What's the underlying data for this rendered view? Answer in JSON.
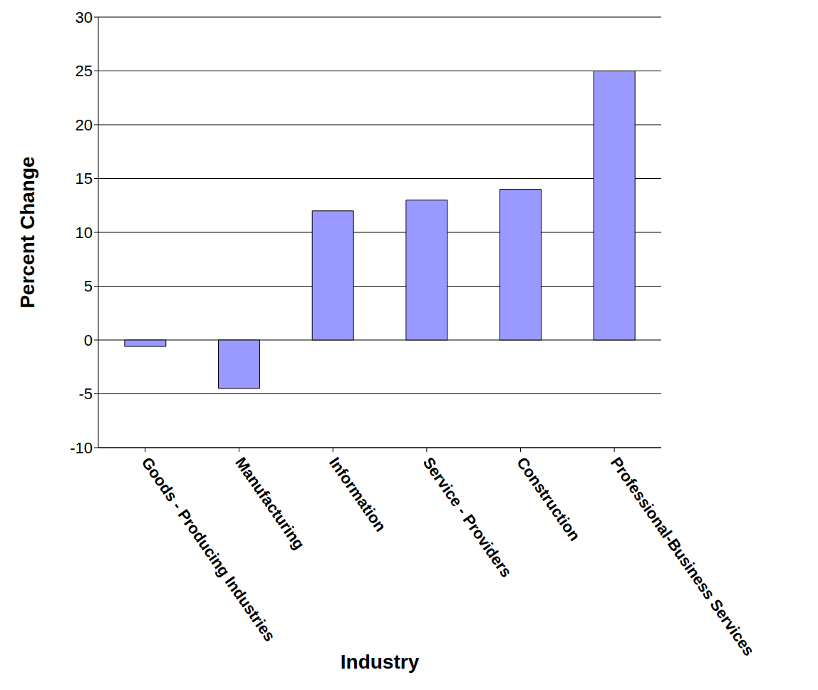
{
  "chart_data": {
    "type": "bar",
    "x_label": "Industry",
    "y_label": "Percent Change",
    "categories": [
      "Goods - Producing Industries",
      "Manufacturing",
      "Information",
      "Service - Providers",
      "Construction",
      "Professional-Business Services"
    ],
    "values": [
      -0.6,
      -4.5,
      12,
      13,
      14,
      25
    ],
    "color": "#9999ff",
    "ylim": [
      -10,
      30
    ],
    "yticks": [
      -10,
      -5,
      0,
      5,
      10,
      15,
      20,
      25,
      30
    ],
    "grid": true
  }
}
